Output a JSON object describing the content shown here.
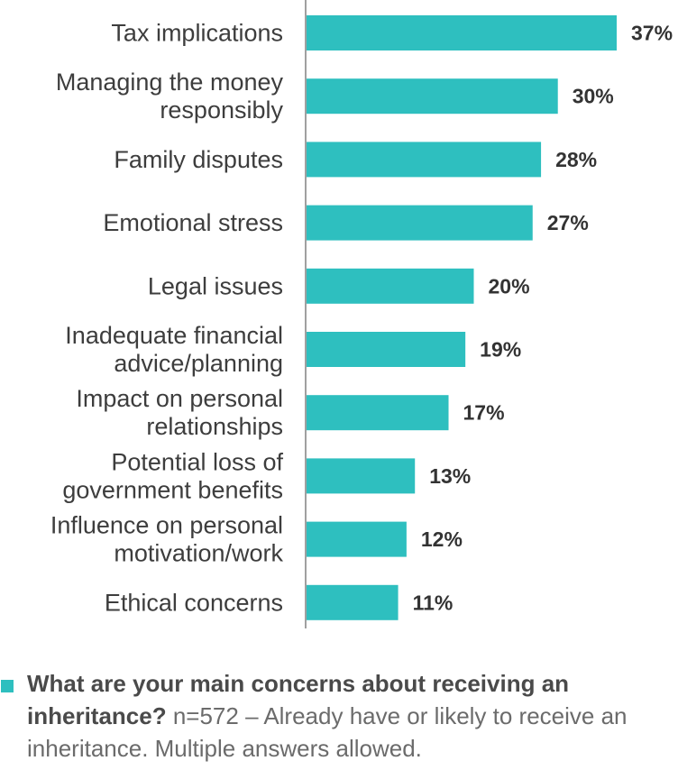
{
  "chart_data": {
    "type": "bar",
    "orientation": "horizontal",
    "categories": [
      [
        "Tax implications"
      ],
      [
        "Managing the money",
        "responsibly"
      ],
      [
        "Family disputes"
      ],
      [
        "Emotional stress"
      ],
      [
        "Legal issues"
      ],
      [
        "Inadequate financial",
        "advice/planning"
      ],
      [
        "Impact on personal",
        "relationships"
      ],
      [
        "Potential loss of",
        "government benefits"
      ],
      [
        "Influence on personal",
        "motivation/work"
      ],
      [
        "Ethical concerns"
      ]
    ],
    "values": [
      37,
      30,
      28,
      27,
      20,
      19,
      17,
      13,
      12,
      11
    ],
    "value_labels": [
      "37%",
      "30%",
      "28%",
      "27%",
      "20%",
      "19%",
      "17%",
      "13%",
      "12%",
      "11%"
    ],
    "xlim": [
      0,
      37
    ],
    "bar_color": "#2ebfbf",
    "axis_color": "#a0a0a0"
  },
  "legend": {
    "question": "What are your main concerns about receiving an inheritance?",
    "note": " n=572 – Already have or likely to receive an inheritance. Multiple answers allowed.",
    "swatch_color": "#2ebfbf"
  }
}
